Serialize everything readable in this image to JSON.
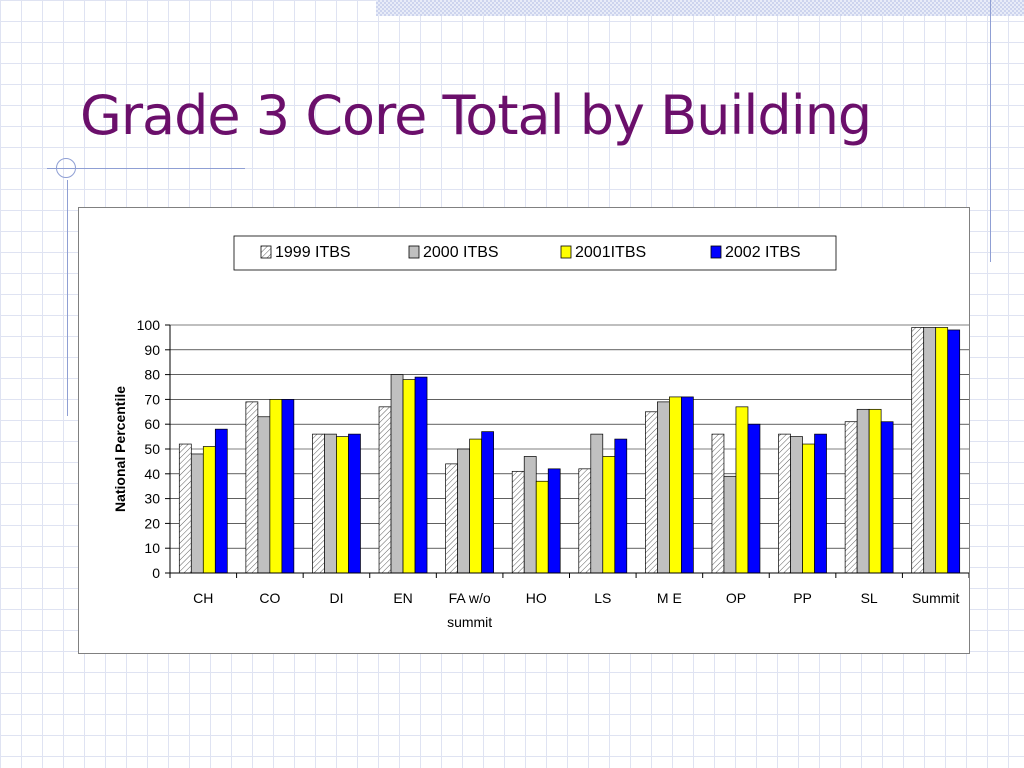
{
  "slide": {
    "title": "Grade 3 Core Total by Building"
  },
  "chart_data": {
    "type": "bar",
    "title": "",
    "xlabel": "",
    "ylabel": "National Percentile",
    "ylim": [
      0,
      100
    ],
    "yticks": [
      0,
      10,
      20,
      30,
      40,
      50,
      60,
      70,
      80,
      90,
      100
    ],
    "grid": true,
    "legend_position": "top",
    "categories": [
      "CH",
      "CO",
      "DI",
      "EN",
      "FA w/o summit",
      "HO",
      "LS",
      "M E",
      "OP",
      "PP",
      "SL",
      "Summit"
    ],
    "series": [
      {
        "name": "1999 ITBS",
        "color": "#ffffff",
        "pattern": "hatched",
        "values": [
          52,
          69,
          56,
          67,
          44,
          41,
          42,
          65,
          56,
          56,
          61,
          99
        ]
      },
      {
        "name": "2000 ITBS",
        "color": "#c0c0c0",
        "values": [
          48,
          63,
          56,
          80,
          50,
          47,
          56,
          69,
          39,
          55,
          66,
          99
        ]
      },
      {
        "name": "2001ITBS",
        "color": "#ffff00",
        "values": [
          51,
          70,
          55,
          78,
          54,
          37,
          47,
          71,
          67,
          52,
          66,
          99
        ]
      },
      {
        "name": "2002 ITBS",
        "color": "#0000ff",
        "values": [
          58,
          70,
          56,
          79,
          57,
          42,
          54,
          71,
          60,
          56,
          61,
          98
        ]
      }
    ]
  }
}
